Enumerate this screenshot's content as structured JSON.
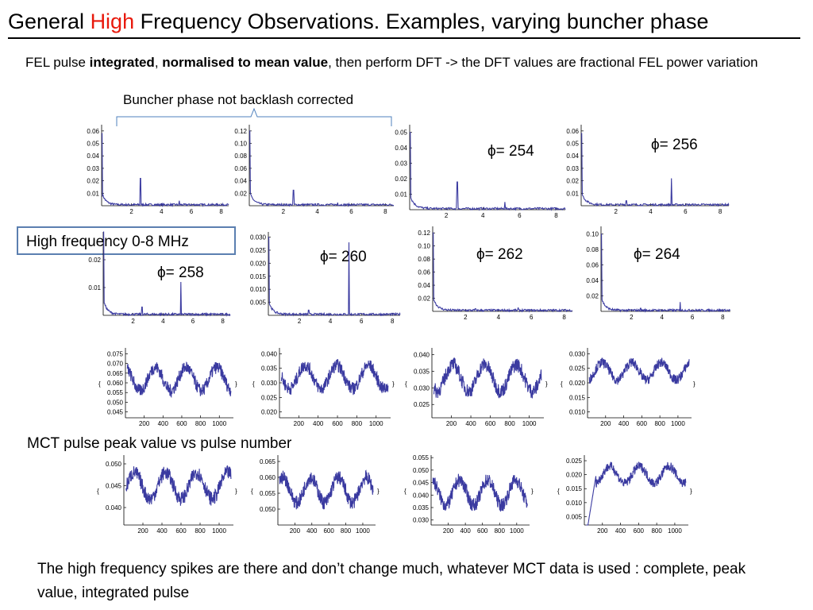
{
  "slide": {
    "title_part1": "General ",
    "title_highlight": "High",
    "title_part2": " Frequency Observations. Examples, varying buncher phase",
    "subtitle_part1": "FEL pulse ",
    "subtitle_bold1": "integrated",
    "subtitle_sep": ", ",
    "subtitle_bold2": "normalised to mean value",
    "subtitle_part2": ", then perform DFT -> the DFT values are fractional FEL power variation",
    "bracket_label": "Buncher phase not backlash corrected",
    "box_label": "High frequency 0-8 MHz",
    "mct_label": "MCT pulse peak value vs pulse number",
    "footer": "The high frequency spikes are there and don’t change much, whatever MCT data is used : complete, peak value, integrated pulse",
    "phi": [
      "ϕ= 254",
      "ϕ= 256",
      "ϕ= 258",
      "ϕ= 260",
      "ϕ= 262",
      "ϕ= 264"
    ],
    "colors": {
      "title_highlight": "#e8190c",
      "series": "#3a3aa0",
      "box_border": "#5b7fb0",
      "bracket": "#4f81bd"
    }
  },
  "chart_data": [
    {
      "type": "line",
      "group": "dft",
      "xlim": [
        0,
        8.5
      ],
      "xticks": [
        2,
        4,
        6,
        8
      ],
      "ylim": [
        0,
        0.065
      ],
      "yticks": [
        "0.06",
        "0.05",
        "0.04",
        "0.03",
        "0.02",
        "0.01"
      ],
      "yvals": [
        0.06,
        0.05,
        0.04,
        0.03,
        0.02,
        0.01
      ],
      "peak": 0.058,
      "spikes": [
        [
          2.6,
          0.022
        ],
        [
          5.2,
          0.004
        ]
      ]
    },
    {
      "type": "line",
      "group": "dft",
      "xlim": [
        0,
        8.5
      ],
      "xticks": [
        2,
        4,
        6,
        8
      ],
      "ylim": [
        0,
        0.13
      ],
      "yticks": [
        "0.12",
        "0.10",
        "0.08",
        "0.06",
        "0.04",
        "0.02"
      ],
      "yvals": [
        0.12,
        0.1,
        0.08,
        0.06,
        0.04,
        0.02
      ],
      "peak": 0.12,
      "spikes": [
        [
          2.6,
          0.025
        ],
        [
          5.2,
          0.005
        ]
      ]
    },
    {
      "type": "line",
      "group": "dft",
      "xlim": [
        0,
        8.5
      ],
      "xticks": [
        2,
        4,
        6,
        8
      ],
      "ylim": [
        0,
        0.055
      ],
      "yticks": [
        "0.05",
        "0.04",
        "0.03",
        "0.02",
        "0.01"
      ],
      "yvals": [
        0.05,
        0.04,
        0.03,
        0.02,
        0.01
      ],
      "peak": 0.05,
      "spikes": [
        [
          2.6,
          0.018
        ],
        [
          5.2,
          0.005
        ]
      ]
    },
    {
      "type": "line",
      "group": "dft",
      "xlim": [
        0,
        8.5
      ],
      "xticks": [
        2,
        4,
        6,
        8
      ],
      "ylim": [
        0,
        0.065
      ],
      "yticks": [
        "0.06",
        "0.05",
        "0.04",
        "0.03",
        "0.02",
        "0.01"
      ],
      "yvals": [
        0.06,
        0.05,
        0.04,
        0.03,
        0.02,
        0.01
      ],
      "peak": 0.058,
      "spikes": [
        [
          5.2,
          0.022
        ],
        [
          2.6,
          0.004
        ]
      ]
    },
    {
      "type": "line",
      "group": "dft",
      "xlim": [
        0,
        8.5
      ],
      "xticks": [
        2,
        4,
        6,
        8
      ],
      "ylim": [
        0,
        0.03
      ],
      "yticks": [
        "0.02",
        "0.01"
      ],
      "yvals": [
        0.02,
        0.01
      ],
      "peak": 0.03,
      "spikes": [
        [
          5.2,
          0.012
        ],
        [
          2.6,
          0.003
        ]
      ]
    },
    {
      "type": "line",
      "group": "dft",
      "xlim": [
        0,
        8.5
      ],
      "xticks": [
        2,
        4,
        6,
        8
      ],
      "ylim": [
        0,
        0.032
      ],
      "yticks": [
        "0.030",
        "0.025",
        "0.020",
        "0.015",
        "0.010",
        "0.005"
      ],
      "yvals": [
        0.03,
        0.025,
        0.02,
        0.015,
        0.01,
        0.005
      ],
      "peak": 0.03,
      "spikes": [
        [
          5.2,
          0.028
        ],
        [
          2.6,
          0.002
        ]
      ]
    },
    {
      "type": "line",
      "group": "dft",
      "xlim": [
        0,
        8.5
      ],
      "xticks": [
        2,
        4,
        6,
        8
      ],
      "ylim": [
        0,
        0.13
      ],
      "yticks": [
        "0.12",
        "0.10",
        "0.08",
        "0.06",
        "0.04",
        "0.02"
      ],
      "yvals": [
        0.12,
        0.1,
        0.08,
        0.06,
        0.04,
        0.02
      ],
      "peak": 0.12,
      "spikes": [
        [
          5.2,
          0.006
        ],
        [
          2.6,
          0.004
        ]
      ]
    },
    {
      "type": "line",
      "group": "dft",
      "xlim": [
        0,
        8.5
      ],
      "xticks": [
        2,
        4,
        6,
        8
      ],
      "ylim": [
        0,
        0.11
      ],
      "yticks": [
        "0.10",
        "0.08",
        "0.06",
        "0.04",
        "0.02"
      ],
      "yvals": [
        0.1,
        0.08,
        0.06,
        0.04,
        0.02
      ],
      "peak": 0.1,
      "spikes": [
        [
          5.2,
          0.012
        ],
        [
          2.6,
          0.004
        ]
      ]
    },
    {
      "type": "line",
      "group": "mct",
      "xlim": [
        0,
        1150
      ],
      "xticks": [
        200,
        400,
        600,
        800,
        1000
      ],
      "ylim": [
        0.042,
        0.078
      ],
      "yticks": [
        "0.075",
        "0.070",
        "0.065",
        "0.060",
        "0.055",
        "0.050",
        "0.045"
      ],
      "yvals": [
        0.075,
        0.07,
        0.065,
        0.06,
        0.055,
        0.05,
        0.045
      ],
      "base": 0.062,
      "amp": 0.006
    },
    {
      "type": "line",
      "group": "mct",
      "xlim": [
        0,
        1150
      ],
      "xticks": [
        200,
        400,
        600,
        800,
        1000
      ],
      "ylim": [
        0.018,
        0.042
      ],
      "yticks": [
        "0.040",
        "0.035",
        "0.030",
        "0.025",
        "0.020"
      ],
      "yvals": [
        0.04,
        0.035,
        0.03,
        0.025,
        0.02
      ],
      "base": 0.032,
      "amp": 0.004
    },
    {
      "type": "line",
      "group": "mct",
      "xlim": [
        0,
        1150
      ],
      "xticks": [
        200,
        400,
        600,
        800,
        1000
      ],
      "ylim": [
        0.021,
        0.042
      ],
      "yticks": [
        "0.040",
        "0.035",
        "0.030",
        "0.025"
      ],
      "yvals": [
        0.04,
        0.035,
        0.03,
        0.025
      ],
      "base": 0.033,
      "amp": 0.004
    },
    {
      "type": "line",
      "group": "mct",
      "xlim": [
        0,
        1150
      ],
      "xticks": [
        200,
        400,
        600,
        800,
        1000
      ],
      "ylim": [
        0.008,
        0.032
      ],
      "yticks": [
        "0.030",
        "0.025",
        "0.020",
        "0.015",
        "0.010"
      ],
      "yvals": [
        0.03,
        0.025,
        0.02,
        0.015,
        0.01
      ],
      "base": 0.024,
      "amp": 0.003
    },
    {
      "type": "line",
      "group": "mct",
      "xlim": [
        0,
        1150
      ],
      "xticks": [
        200,
        400,
        600,
        800,
        1000
      ],
      "ylim": [
        0.036,
        0.052
      ],
      "yticks": [
        "0.050",
        "0.045",
        "0.040"
      ],
      "yvals": [
        0.05,
        0.045,
        0.04
      ],
      "base": 0.045,
      "amp": 0.003
    },
    {
      "type": "line",
      "group": "mct",
      "xlim": [
        0,
        1150
      ],
      "xticks": [
        200,
        400,
        600,
        800,
        1000
      ],
      "ylim": [
        0.045,
        0.067
      ],
      "yticks": [
        "0.065",
        "0.060",
        "0.055",
        "0.050"
      ],
      "yvals": [
        0.065,
        0.06,
        0.055,
        0.05
      ],
      "base": 0.056,
      "amp": 0.004
    },
    {
      "type": "line",
      "group": "mct",
      "xlim": [
        0,
        1150
      ],
      "xticks": [
        200,
        400,
        600,
        800,
        1000
      ],
      "ylim": [
        0.028,
        0.056
      ],
      "yticks": [
        "0.055",
        "0.050",
        "0.045",
        "0.040",
        "0.035",
        "0.030"
      ],
      "yvals": [
        0.055,
        0.05,
        0.045,
        0.04,
        0.035,
        0.03
      ],
      "base": 0.041,
      "amp": 0.005
    },
    {
      "type": "line",
      "group": "mct",
      "xlim": [
        0,
        1150
      ],
      "xticks": [
        200,
        400,
        600,
        800,
        1000
      ],
      "ylim": [
        0.002,
        0.027
      ],
      "yticks": [
        "0.025",
        "0.020",
        "0.015",
        "0.010",
        "0.005"
      ],
      "yvals": [
        0.025,
        0.02,
        0.015,
        0.01,
        0.005
      ],
      "base": 0.02,
      "amp": 0.003,
      "ramp": true
    }
  ]
}
